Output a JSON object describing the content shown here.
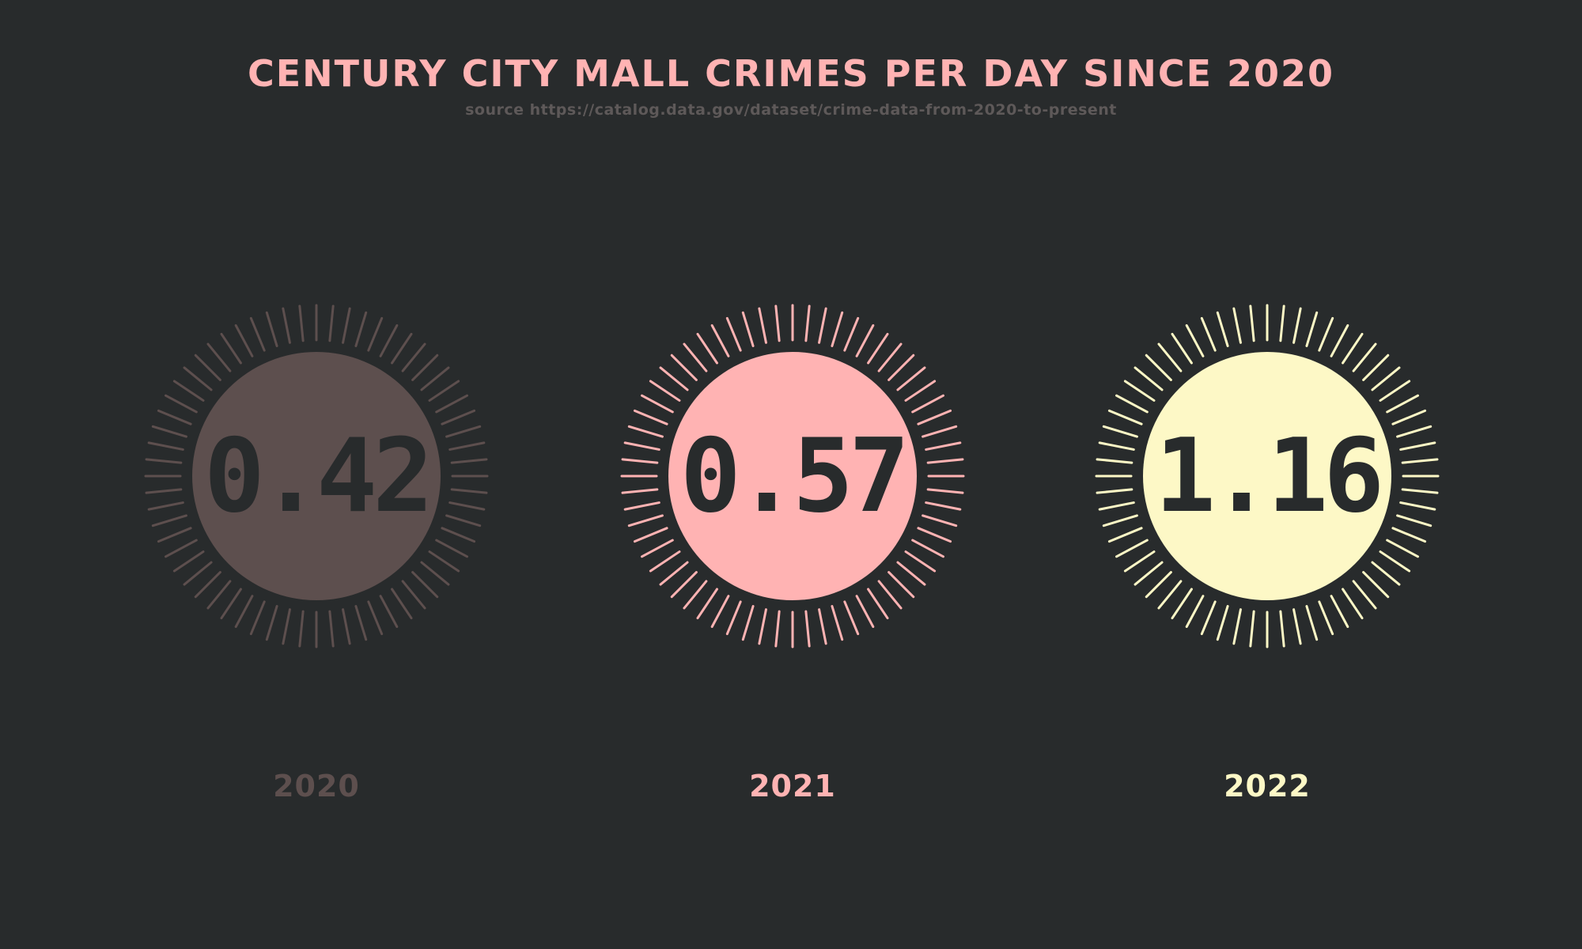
{
  "header": {
    "title": "CENTURY CITY MALL CRIMES PER DAY SINCE 2020",
    "subtitle": "source https://catalog.data.gov/dataset/crime-data-from-2020-to-present"
  },
  "colors": {
    "background": "#282b2c",
    "title": "#ffb3b3",
    "subtitle": "#5e5959",
    "value_text": "#282b2c"
  },
  "chart_data": {
    "type": "radial-tick-badges",
    "title": "CENTURY CITY MALL CRIMES PER DAY SINCE 2020",
    "categories": [
      "2020",
      "2021",
      "2022"
    ],
    "values": [
      0.42,
      0.57,
      1.16
    ],
    "value_labels": [
      "0.42",
      "0.57",
      "1.16"
    ],
    "colors": [
      "#5d4f4e",
      "#ffb3b3",
      "#fdf8c6"
    ],
    "ticks_per_badge": 64
  }
}
